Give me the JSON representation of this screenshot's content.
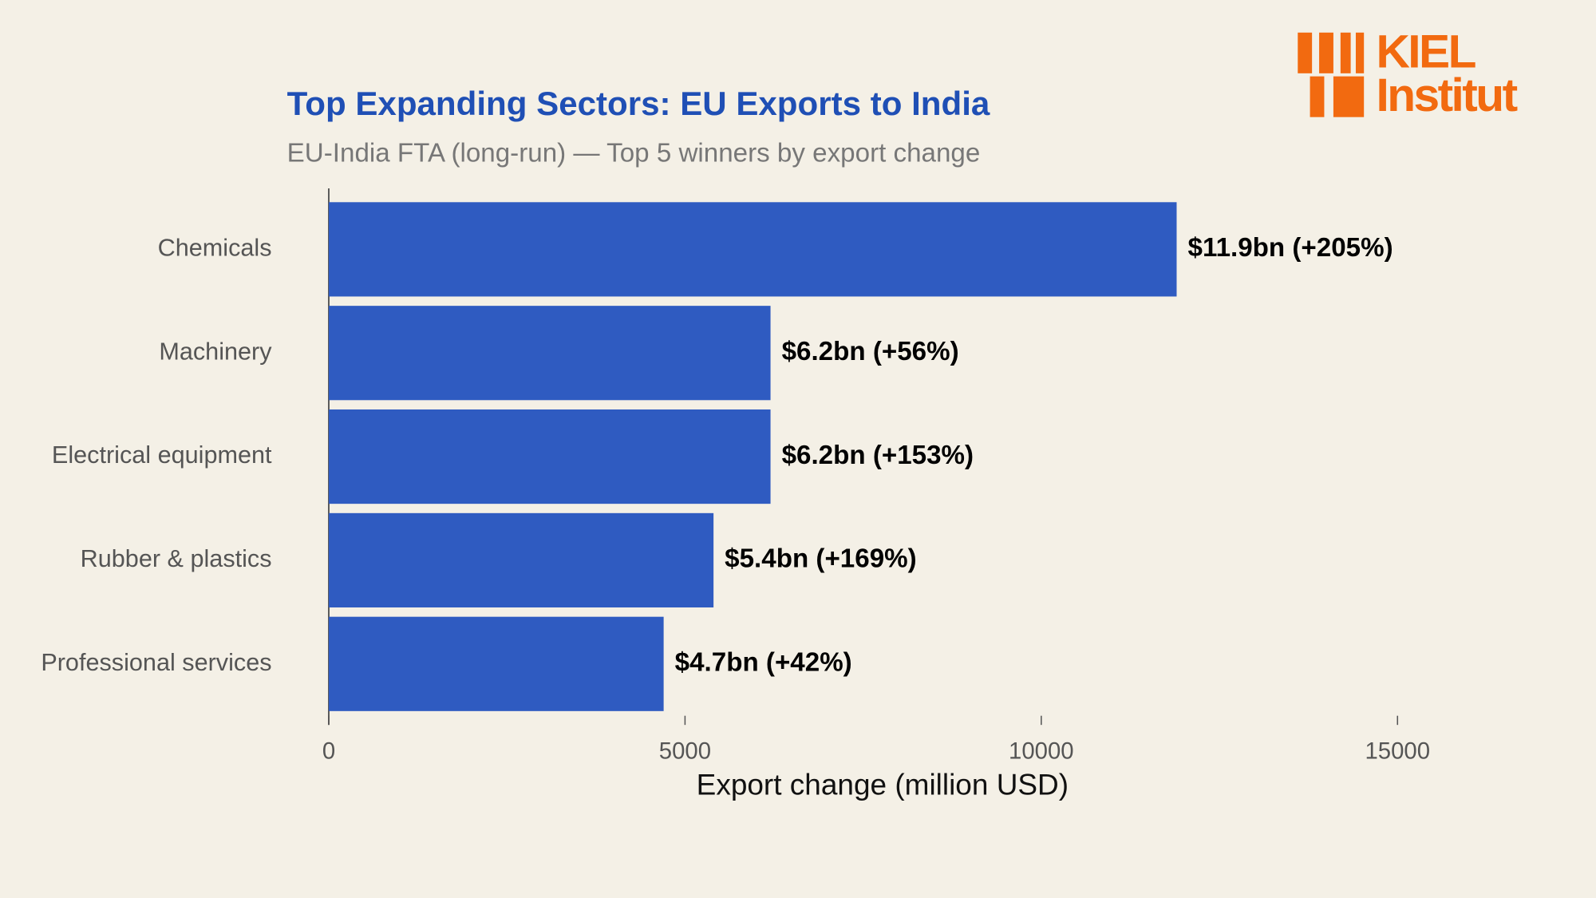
{
  "chart_data": {
    "type": "barh",
    "title": "Top Expanding Sectors: EU Exports to India",
    "subtitle": "EU-India FTA (long-run) — Top 5 winners by export change",
    "xlabel": "Export change (million USD)",
    "categories": [
      "Chemicals",
      "Machinery",
      "Electrical equipment",
      "Rubber & plastics",
      "Professional services"
    ],
    "values": [
      11900,
      6200,
      6200,
      5400,
      4700
    ],
    "value_labels": [
      "$11.9bn (+205%)",
      "$6.2bn (+56%)",
      "$6.2bn (+153%)",
      "$5.4bn (+169%)",
      "$4.7bn (+42%)"
    ],
    "color": "#2f5bc1",
    "xlim": [
      0,
      15500
    ],
    "xticks": [
      0,
      5000,
      10000,
      15000
    ],
    "grid": false
  },
  "logo": {
    "line1": "KIEL",
    "line2": "Institut"
  }
}
